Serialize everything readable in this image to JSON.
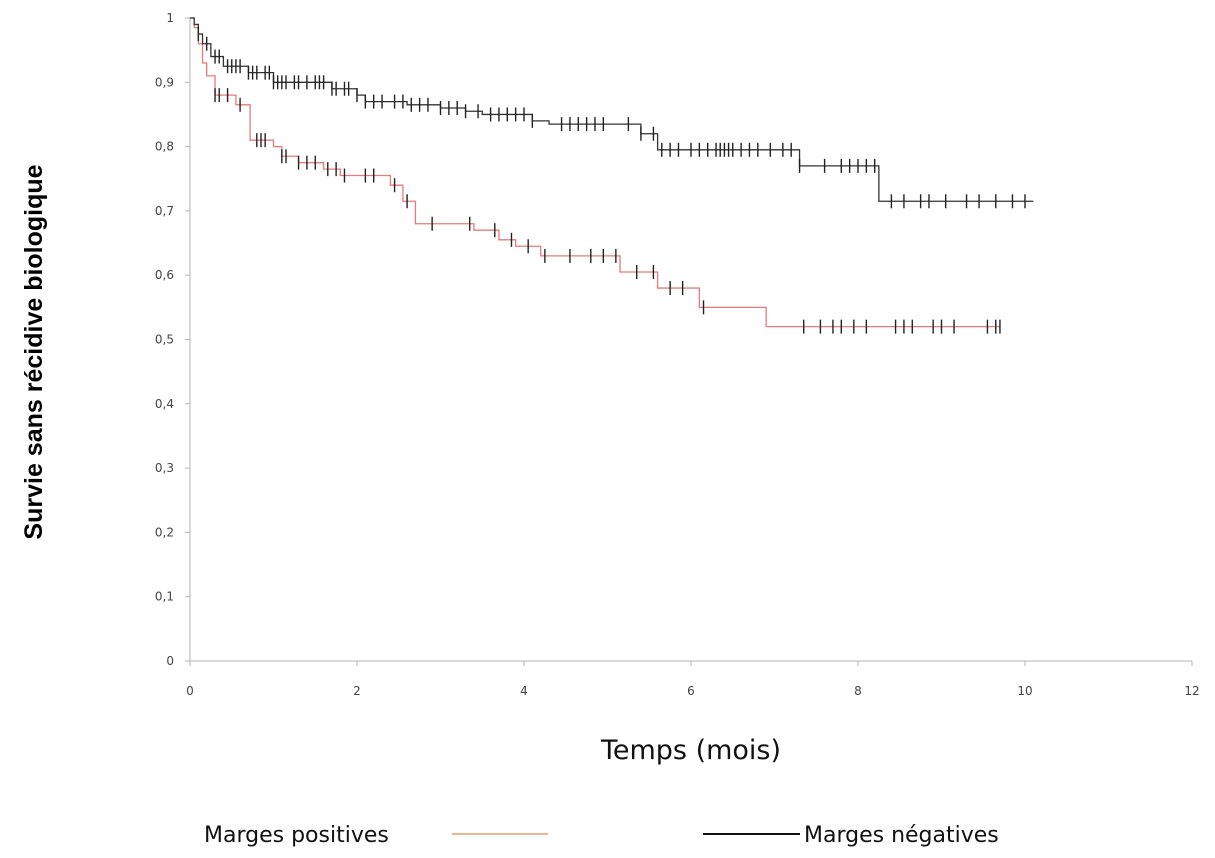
{
  "chart_data": {
    "type": "line",
    "subtype": "kaplan-meier step curves with censor ticks",
    "xlabel": "Temps (mois)",
    "ylabel": "Survie sans récidive biologique",
    "xlim": [
      0,
      12
    ],
    "ylim": [
      0,
      1
    ],
    "x_ticks": [
      0,
      2,
      4,
      6,
      8,
      10,
      12
    ],
    "x_tick_labels": [
      "0",
      "2",
      "4",
      "6",
      "8",
      "10",
      "12"
    ],
    "y_ticks": [
      0,
      0.1,
      0.2,
      0.3,
      0.4,
      0.5,
      0.6,
      0.7,
      0.8,
      0.9,
      1
    ],
    "y_tick_labels": [
      "0",
      "0,1",
      "0,2",
      "0,3",
      "0,4",
      "0,5",
      "0,6",
      "0,7",
      "0,8",
      "0,9",
      "1"
    ],
    "grid": false,
    "legend_position": "bottom",
    "series": [
      {
        "name": "Marges positives",
        "color": "#e87a7a",
        "legend_color": "#e8a070",
        "steps": [
          [
            0,
            1
          ],
          [
            0.05,
            0.985
          ],
          [
            0.1,
            0.96
          ],
          [
            0.15,
            0.93
          ],
          [
            0.2,
            0.91
          ],
          [
            0.3,
            0.88
          ],
          [
            0.55,
            0.865
          ],
          [
            0.72,
            0.81
          ],
          [
            1.0,
            0.8
          ],
          [
            1.1,
            0.785
          ],
          [
            1.3,
            0.775
          ],
          [
            1.6,
            0.765
          ],
          [
            1.8,
            0.755
          ],
          [
            2.4,
            0.74
          ],
          [
            2.55,
            0.715
          ],
          [
            2.7,
            0.68
          ],
          [
            3.4,
            0.67
          ],
          [
            3.7,
            0.655
          ],
          [
            3.9,
            0.645
          ],
          [
            4.2,
            0.63
          ],
          [
            5.15,
            0.605
          ],
          [
            5.6,
            0.58
          ],
          [
            6.1,
            0.55
          ],
          [
            6.9,
            0.52
          ],
          [
            9.7,
            0.52
          ]
        ],
        "censored_x": [
          0.3,
          0.35,
          0.45,
          0.6,
          0.8,
          0.85,
          0.9,
          1.1,
          1.15,
          1.3,
          1.4,
          1.5,
          1.65,
          1.75,
          1.85,
          2.1,
          2.2,
          2.45,
          2.6,
          2.9,
          3.35,
          3.65,
          3.85,
          4.05,
          4.25,
          4.55,
          4.8,
          4.95,
          5.1,
          5.35,
          5.55,
          5.75,
          5.9,
          6.15,
          7.35,
          7.55,
          7.7,
          7.8,
          7.95,
          8.1,
          8.45,
          8.55,
          8.65,
          8.9,
          9.0,
          9.15,
          9.55,
          9.65,
          9.7
        ]
      },
      {
        "name": "Marges négatives",
        "color": "#333333",
        "legend_color": "#111111",
        "steps": [
          [
            0,
            1
          ],
          [
            0.05,
            0.99
          ],
          [
            0.1,
            0.975
          ],
          [
            0.15,
            0.96
          ],
          [
            0.25,
            0.94
          ],
          [
            0.4,
            0.925
          ],
          [
            0.7,
            0.915
          ],
          [
            1.0,
            0.9
          ],
          [
            1.7,
            0.89
          ],
          [
            2.0,
            0.88
          ],
          [
            2.1,
            0.87
          ],
          [
            2.6,
            0.865
          ],
          [
            3.0,
            0.86
          ],
          [
            3.3,
            0.855
          ],
          [
            3.5,
            0.85
          ],
          [
            4.1,
            0.84
          ],
          [
            4.3,
            0.835
          ],
          [
            5.4,
            0.82
          ],
          [
            5.6,
            0.795
          ],
          [
            7.3,
            0.77
          ],
          [
            8.25,
            0.715
          ],
          [
            10.1,
            0.715
          ]
        ],
        "censored_x": [
          0.1,
          0.2,
          0.3,
          0.35,
          0.45,
          0.5,
          0.55,
          0.6,
          0.7,
          0.75,
          0.8,
          0.9,
          0.95,
          1.0,
          1.05,
          1.1,
          1.15,
          1.25,
          1.3,
          1.4,
          1.5,
          1.55,
          1.6,
          1.7,
          1.75,
          1.85,
          1.9,
          2.0,
          2.1,
          2.2,
          2.3,
          2.45,
          2.55,
          2.65,
          2.75,
          2.85,
          3.0,
          3.1,
          3.2,
          3.3,
          3.45,
          3.6,
          3.7,
          3.8,
          3.9,
          4.0,
          4.1,
          4.45,
          4.55,
          4.65,
          4.75,
          4.85,
          4.95,
          5.25,
          5.4,
          5.55,
          5.65,
          5.75,
          5.85,
          6.0,
          6.1,
          6.2,
          6.3,
          6.35,
          6.4,
          6.45,
          6.5,
          6.6,
          6.7,
          6.8,
          6.95,
          7.1,
          7.2,
          7.3,
          7.6,
          7.8,
          7.9,
          8.0,
          8.1,
          8.2,
          8.4,
          8.55,
          8.75,
          8.85,
          9.05,
          9.3,
          9.45,
          9.65,
          9.85,
          10.0
        ]
      }
    ]
  },
  "legend": {
    "positive_label": "Marges positives",
    "negative_label": "Marges négatives"
  }
}
